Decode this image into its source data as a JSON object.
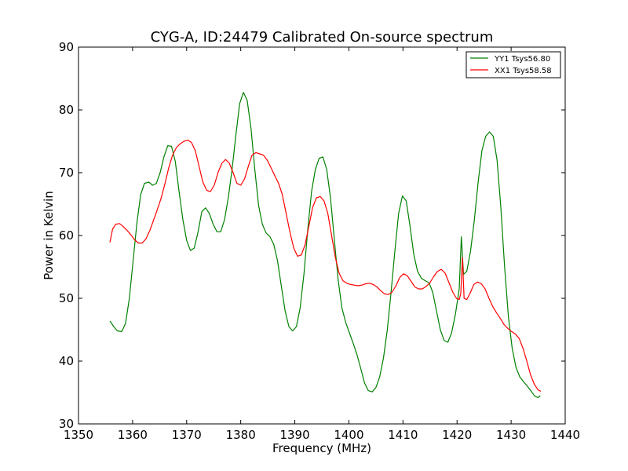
{
  "chart_data": {
    "type": "line",
    "title": "CYG-A, ID:24479 Calibrated On-source spectrum",
    "xlabel": "Frequency (MHz)",
    "ylabel": "Power in Kelvin",
    "xlim": [
      1350,
      1440
    ],
    "ylim": [
      30,
      90
    ],
    "xticks": [
      1350,
      1360,
      1370,
      1380,
      1390,
      1400,
      1410,
      1420,
      1430,
      1440
    ],
    "yticks": [
      30,
      40,
      50,
      60,
      70,
      80,
      90
    ],
    "grid": false,
    "legend_position": "top-right",
    "series": [
      {
        "name": "YY1 Tsys56.80",
        "color": "#008000",
        "points": [
          [
            1355.8,
            46.4
          ],
          [
            1356.5,
            45.5
          ],
          [
            1357.2,
            44.8
          ],
          [
            1358.0,
            44.7
          ],
          [
            1358.7,
            46.0
          ],
          [
            1359.4,
            50.0
          ],
          [
            1360.1,
            56.0
          ],
          [
            1360.8,
            62.0
          ],
          [
            1361.5,
            66.5
          ],
          [
            1362.2,
            68.3
          ],
          [
            1363.0,
            68.5
          ],
          [
            1363.7,
            68.0
          ],
          [
            1364.4,
            68.3
          ],
          [
            1365.1,
            70.0
          ],
          [
            1365.8,
            72.5
          ],
          [
            1366.5,
            74.3
          ],
          [
            1367.2,
            74.2
          ],
          [
            1367.9,
            71.8
          ],
          [
            1368.6,
            67.0
          ],
          [
            1369.3,
            62.5
          ],
          [
            1370.0,
            59.2
          ],
          [
            1370.7,
            57.6
          ],
          [
            1371.4,
            58.0
          ],
          [
            1372.1,
            60.5
          ],
          [
            1372.8,
            63.8
          ],
          [
            1373.5,
            64.4
          ],
          [
            1374.2,
            63.5
          ],
          [
            1374.9,
            61.8
          ],
          [
            1375.6,
            60.6
          ],
          [
            1376.3,
            60.6
          ],
          [
            1377.0,
            62.5
          ],
          [
            1377.7,
            66.0
          ],
          [
            1378.4,
            70.5
          ],
          [
            1379.1,
            76.0
          ],
          [
            1379.8,
            81.0
          ],
          [
            1380.5,
            82.8
          ],
          [
            1381.2,
            81.5
          ],
          [
            1381.9,
            77.0
          ],
          [
            1382.6,
            70.5
          ],
          [
            1383.3,
            64.8
          ],
          [
            1384.0,
            61.8
          ],
          [
            1384.7,
            60.4
          ],
          [
            1385.4,
            59.8
          ],
          [
            1386.1,
            58.6
          ],
          [
            1386.8,
            56.0
          ],
          [
            1387.5,
            52.0
          ],
          [
            1388.2,
            48.0
          ],
          [
            1388.9,
            45.5
          ],
          [
            1389.6,
            44.8
          ],
          [
            1390.3,
            45.5
          ],
          [
            1391.0,
            48.5
          ],
          [
            1391.7,
            54.0
          ],
          [
            1392.4,
            61.0
          ],
          [
            1393.1,
            67.0
          ],
          [
            1393.8,
            70.5
          ],
          [
            1394.5,
            72.3
          ],
          [
            1395.2,
            72.5
          ],
          [
            1395.9,
            70.5
          ],
          [
            1396.6,
            66.0
          ],
          [
            1397.3,
            59.5
          ],
          [
            1398.0,
            53.0
          ],
          [
            1398.7,
            48.5
          ],
          [
            1399.4,
            46.2
          ],
          [
            1400.1,
            44.5
          ],
          [
            1400.8,
            42.8
          ],
          [
            1401.5,
            41.0
          ],
          [
            1402.2,
            38.8
          ],
          [
            1402.9,
            36.5
          ],
          [
            1403.6,
            35.3
          ],
          [
            1404.3,
            35.1
          ],
          [
            1405.0,
            35.8
          ],
          [
            1405.7,
            37.5
          ],
          [
            1406.4,
            40.5
          ],
          [
            1407.1,
            45.0
          ],
          [
            1407.8,
            51.0
          ],
          [
            1408.5,
            57.5
          ],
          [
            1409.2,
            63.5
          ],
          [
            1409.9,
            66.3
          ],
          [
            1410.6,
            65.5
          ],
          [
            1411.3,
            61.5
          ],
          [
            1412.0,
            57.0
          ],
          [
            1412.7,
            54.3
          ],
          [
            1413.4,
            53.2
          ],
          [
            1414.1,
            52.8
          ],
          [
            1414.8,
            52.5
          ],
          [
            1415.5,
            51.0
          ],
          [
            1416.2,
            48.0
          ],
          [
            1416.9,
            45.0
          ],
          [
            1417.6,
            43.3
          ],
          [
            1418.3,
            43.0
          ],
          [
            1419.0,
            44.5
          ],
          [
            1419.7,
            47.5
          ],
          [
            1420.4,
            51.5
          ],
          [
            1420.8,
            59.8
          ],
          [
            1421.2,
            53.8
          ],
          [
            1421.8,
            54.3
          ],
          [
            1422.5,
            57.5
          ],
          [
            1423.2,
            62.5
          ],
          [
            1423.9,
            68.5
          ],
          [
            1424.6,
            73.5
          ],
          [
            1425.3,
            75.8
          ],
          [
            1426.0,
            76.5
          ],
          [
            1426.7,
            75.8
          ],
          [
            1427.4,
            72.0
          ],
          [
            1428.1,
            64.5
          ],
          [
            1428.8,
            55.0
          ],
          [
            1429.5,
            47.0
          ],
          [
            1430.2,
            42.0
          ],
          [
            1430.9,
            39.0
          ],
          [
            1431.6,
            37.5
          ],
          [
            1432.3,
            36.7
          ],
          [
            1433.0,
            36.0
          ],
          [
            1433.7,
            35.2
          ],
          [
            1434.4,
            34.4
          ],
          [
            1435.0,
            34.2
          ],
          [
            1435.4,
            34.5
          ]
        ]
      },
      {
        "name": "XX1 Tsys58.58",
        "color": "#ff0000",
        "points": [
          [
            1355.8,
            58.9
          ],
          [
            1356.3,
            61.0
          ],
          [
            1356.9,
            61.8
          ],
          [
            1357.6,
            61.9
          ],
          [
            1358.3,
            61.4
          ],
          [
            1359.0,
            60.8
          ],
          [
            1359.7,
            60.1
          ],
          [
            1360.4,
            59.3
          ],
          [
            1361.1,
            58.8
          ],
          [
            1361.8,
            58.8
          ],
          [
            1362.5,
            59.5
          ],
          [
            1363.2,
            60.8
          ],
          [
            1363.9,
            62.5
          ],
          [
            1364.6,
            64.2
          ],
          [
            1365.3,
            66.0
          ],
          [
            1366.0,
            68.3
          ],
          [
            1366.7,
            70.8
          ],
          [
            1367.4,
            72.8
          ],
          [
            1368.1,
            74.0
          ],
          [
            1368.8,
            74.6
          ],
          [
            1369.5,
            75.0
          ],
          [
            1370.2,
            75.2
          ],
          [
            1370.9,
            74.8
          ],
          [
            1371.6,
            73.5
          ],
          [
            1372.3,
            71.0
          ],
          [
            1373.0,
            68.5
          ],
          [
            1373.7,
            67.2
          ],
          [
            1374.4,
            67.0
          ],
          [
            1375.1,
            68.0
          ],
          [
            1375.8,
            70.0
          ],
          [
            1376.5,
            71.5
          ],
          [
            1377.2,
            72.1
          ],
          [
            1377.9,
            71.5
          ],
          [
            1378.6,
            70.0
          ],
          [
            1379.3,
            68.3
          ],
          [
            1380.0,
            68.0
          ],
          [
            1380.7,
            69.0
          ],
          [
            1381.4,
            71.0
          ],
          [
            1382.1,
            72.8
          ],
          [
            1382.8,
            73.2
          ],
          [
            1383.5,
            73.0
          ],
          [
            1384.2,
            72.8
          ],
          [
            1384.9,
            72.0
          ],
          [
            1385.6,
            70.8
          ],
          [
            1386.3,
            69.5
          ],
          [
            1387.0,
            68.3
          ],
          [
            1387.7,
            66.5
          ],
          [
            1388.4,
            63.5
          ],
          [
            1389.1,
            60.5
          ],
          [
            1389.8,
            58.0
          ],
          [
            1390.5,
            56.7
          ],
          [
            1391.2,
            56.9
          ],
          [
            1391.9,
            58.5
          ],
          [
            1392.6,
            61.5
          ],
          [
            1393.3,
            64.5
          ],
          [
            1394.0,
            66.0
          ],
          [
            1394.7,
            66.2
          ],
          [
            1395.4,
            65.5
          ],
          [
            1396.1,
            63.5
          ],
          [
            1396.8,
            60.0
          ],
          [
            1397.5,
            56.5
          ],
          [
            1398.2,
            54.0
          ],
          [
            1398.9,
            52.8
          ],
          [
            1399.6,
            52.4
          ],
          [
            1400.3,
            52.2
          ],
          [
            1401.0,
            52.1
          ],
          [
            1401.7,
            52.0
          ],
          [
            1402.4,
            52.1
          ],
          [
            1403.1,
            52.3
          ],
          [
            1403.8,
            52.4
          ],
          [
            1404.5,
            52.2
          ],
          [
            1405.2,
            51.8
          ],
          [
            1405.9,
            51.2
          ],
          [
            1406.6,
            50.7
          ],
          [
            1407.3,
            50.6
          ],
          [
            1408.0,
            51.0
          ],
          [
            1408.7,
            52.0
          ],
          [
            1409.4,
            53.3
          ],
          [
            1410.1,
            53.9
          ],
          [
            1410.8,
            53.6
          ],
          [
            1411.5,
            52.7
          ],
          [
            1412.2,
            51.8
          ],
          [
            1412.9,
            51.5
          ],
          [
            1413.6,
            51.5
          ],
          [
            1414.3,
            51.9
          ],
          [
            1415.0,
            52.5
          ],
          [
            1415.7,
            53.5
          ],
          [
            1416.4,
            54.3
          ],
          [
            1417.1,
            54.6
          ],
          [
            1417.8,
            54.0
          ],
          [
            1418.5,
            52.5
          ],
          [
            1419.2,
            51.0
          ],
          [
            1419.9,
            50.0
          ],
          [
            1420.4,
            49.8
          ],
          [
            1420.7,
            50.8
          ],
          [
            1421.0,
            56.5
          ],
          [
            1421.3,
            50.0
          ],
          [
            1421.8,
            49.8
          ],
          [
            1422.4,
            50.8
          ],
          [
            1423.1,
            52.2
          ],
          [
            1423.8,
            52.6
          ],
          [
            1424.5,
            52.3
          ],
          [
            1425.2,
            51.5
          ],
          [
            1425.9,
            50.0
          ],
          [
            1426.6,
            48.7
          ],
          [
            1427.3,
            47.7
          ],
          [
            1428.0,
            46.8
          ],
          [
            1428.7,
            45.8
          ],
          [
            1429.4,
            45.2
          ],
          [
            1430.1,
            44.7
          ],
          [
            1430.8,
            44.3
          ],
          [
            1431.5,
            43.6
          ],
          [
            1432.2,
            42.0
          ],
          [
            1432.9,
            40.0
          ],
          [
            1433.6,
            37.8
          ],
          [
            1434.3,
            36.3
          ],
          [
            1435.0,
            35.4
          ],
          [
            1435.5,
            35.2
          ]
        ]
      }
    ]
  }
}
